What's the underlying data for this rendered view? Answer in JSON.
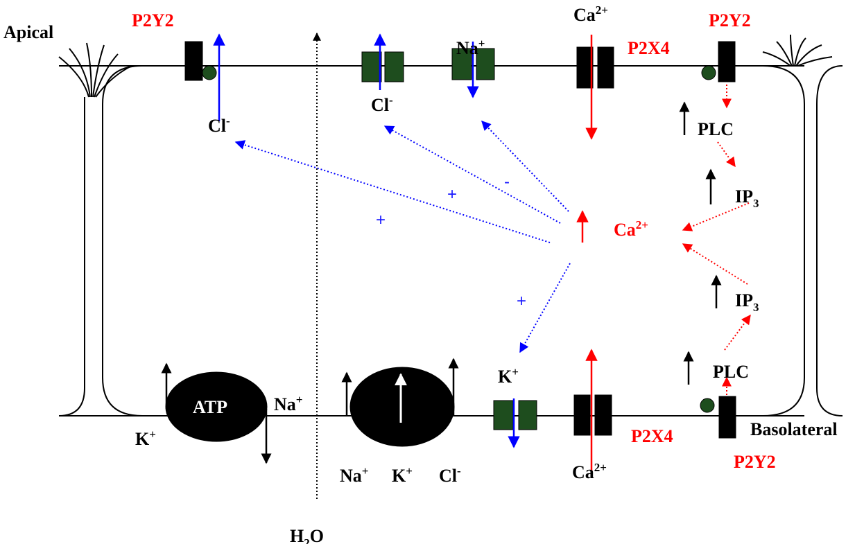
{
  "regions": {
    "apical": "Apical",
    "basolateral": "Basolateral"
  },
  "receptors": {
    "p2y2_apical_left": "P2Y2",
    "p2y2_apical_right": "P2Y2",
    "p2x4_apical": "P2X4",
    "p2x4_basolateral": "P2X4",
    "p2y2_basolateral": "P2Y2"
  },
  "ions": {
    "cl_apical_left": {
      "base": "Cl",
      "sup": "-"
    },
    "cl_apical_mid": {
      "base": "Cl",
      "sup": "-"
    },
    "na_apical": {
      "base": "Na",
      "sup": "+"
    },
    "ca_apical": {
      "base": "Ca",
      "sup": "2+"
    },
    "ca_cytosol": {
      "base": "Ca",
      "sup": "2+"
    },
    "ca_basolateral": {
      "base": "Ca",
      "sup": "2+"
    },
    "na_atpase": {
      "base": "Na",
      "sup": "+"
    },
    "k_atpase": {
      "base": "K",
      "sup": "+"
    },
    "na_cotransporter": {
      "base": "Na",
      "sup": "+"
    },
    "k_cotransporter": {
      "base": "K",
      "sup": "+"
    },
    "cl_cotransporter": {
      "base": "Cl",
      "sup": "-"
    },
    "k_channel": {
      "base": "K",
      "sup": "+"
    },
    "water": {
      "base": "H",
      "sub": "2",
      "tail": "O"
    }
  },
  "signalling": {
    "plc_apical": "PLC",
    "ip3_apical": {
      "base": "IP",
      "sub": "3"
    },
    "ip3_basolateral": {
      "base": "IP",
      "sub": "3"
    },
    "plc_basolateral": "PLC"
  },
  "pump": "ATP",
  "effects": [
    "+",
    "+",
    "-",
    "+"
  ]
}
